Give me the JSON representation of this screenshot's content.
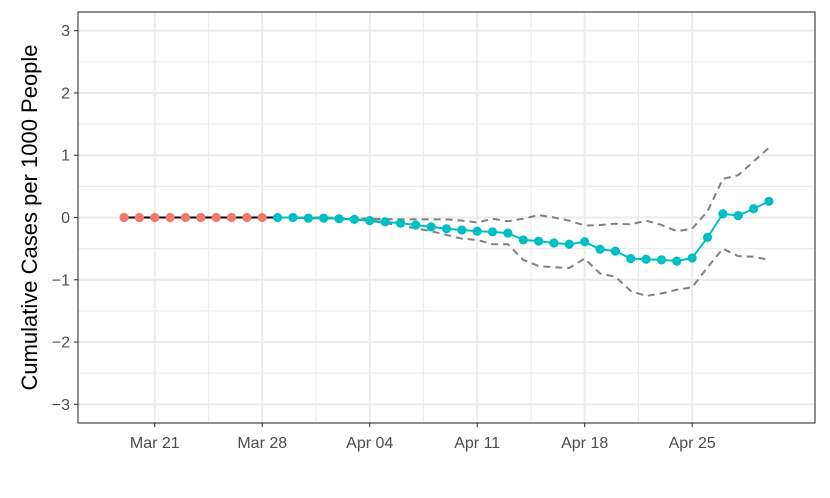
{
  "chart_data": {
    "type": "line",
    "ylabel": "Cumulative Cases per 1000 People",
    "xlabel": "",
    "x_axis": {
      "type": "date",
      "xlim": [
        "2020-03-16",
        "2020-05-03"
      ],
      "ticks": [
        "2020-03-21",
        "2020-03-28",
        "2020-04-04",
        "2020-04-11",
        "2020-04-18",
        "2020-04-25"
      ],
      "tick_labels": [
        "Mar 21",
        "Mar 28",
        "Apr 04",
        "Apr 11",
        "Apr 18",
        "Apr 25"
      ]
    },
    "y_axis": {
      "ylim": [
        -3.3,
        3.3
      ],
      "ticks": [
        3,
        2,
        1,
        0,
        -1,
        -2,
        -3
      ],
      "tick_labels": [
        "3",
        "2",
        "1",
        "0",
        "−1",
        "−2",
        "−3"
      ]
    },
    "grid": true,
    "legend": "none",
    "series": [
      {
        "role": "pre-period",
        "style": "points with black line",
        "color": "#F8766D",
        "points": [
          [
            "2020-03-19",
            0
          ],
          [
            "2020-03-20",
            0
          ],
          [
            "2020-03-21",
            0
          ],
          [
            "2020-03-22",
            0
          ],
          [
            "2020-03-23",
            0
          ],
          [
            "2020-03-24",
            0
          ],
          [
            "2020-03-25",
            0
          ],
          [
            "2020-03-26",
            0
          ],
          [
            "2020-03-27",
            0
          ],
          [
            "2020-03-28",
            0
          ]
        ]
      },
      {
        "role": "post-period",
        "style": "points with line",
        "color": "#00BFC4",
        "points": [
          [
            "2020-03-29",
            0
          ],
          [
            "2020-03-30",
            0
          ],
          [
            "2020-03-31",
            -0.01
          ],
          [
            "2020-04-01",
            -0.01
          ],
          [
            "2020-04-02",
            -0.02
          ],
          [
            "2020-04-03",
            -0.03
          ],
          [
            "2020-04-04",
            -0.05
          ],
          [
            "2020-04-05",
            -0.07
          ],
          [
            "2020-04-06",
            -0.09
          ],
          [
            "2020-04-07",
            -0.12
          ],
          [
            "2020-04-08",
            -0.15
          ],
          [
            "2020-04-09",
            -0.18
          ],
          [
            "2020-04-10",
            -0.2
          ],
          [
            "2020-04-11",
            -0.22
          ],
          [
            "2020-04-12",
            -0.23
          ],
          [
            "2020-04-13",
            -0.25
          ],
          [
            "2020-04-14",
            -0.36
          ],
          [
            "2020-04-15",
            -0.38
          ],
          [
            "2020-04-16",
            -0.41
          ],
          [
            "2020-04-17",
            -0.43
          ],
          [
            "2020-04-18",
            -0.39
          ],
          [
            "2020-04-19",
            -0.51
          ],
          [
            "2020-04-20",
            -0.54
          ],
          [
            "2020-04-21",
            -0.66
          ],
          [
            "2020-04-22",
            -0.67
          ],
          [
            "2020-04-23",
            -0.68
          ],
          [
            "2020-04-24",
            -0.7
          ],
          [
            "2020-04-25",
            -0.65
          ],
          [
            "2020-04-26",
            -0.32
          ],
          [
            "2020-04-27",
            0.06
          ],
          [
            "2020-04-28",
            0.03
          ],
          [
            "2020-04-29",
            0.14
          ],
          [
            "2020-04-30",
            0.26
          ]
        ]
      },
      {
        "role": "upper interval",
        "style": "dashed",
        "color": "#808080",
        "points": [
          [
            "2020-03-29",
            0
          ],
          [
            "2020-04-01",
            0
          ],
          [
            "2020-04-04",
            -0.02
          ],
          [
            "2020-04-06",
            -0.03
          ],
          [
            "2020-04-08",
            -0.03
          ],
          [
            "2020-04-09",
            -0.03
          ],
          [
            "2020-04-10",
            -0.05
          ],
          [
            "2020-04-11",
            -0.08
          ],
          [
            "2020-04-12",
            -0.02
          ],
          [
            "2020-04-13",
            -0.06
          ],
          [
            "2020-04-14",
            -0.02
          ],
          [
            "2020-04-15",
            0.04
          ],
          [
            "2020-04-16",
            0
          ],
          [
            "2020-04-17",
            -0.05
          ],
          [
            "2020-04-18",
            -0.13
          ],
          [
            "2020-04-19",
            -0.12
          ],
          [
            "2020-04-20",
            -0.1
          ],
          [
            "2020-04-21",
            -0.11
          ],
          [
            "2020-04-22",
            -0.05
          ],
          [
            "2020-04-23",
            -0.12
          ],
          [
            "2020-04-24",
            -0.22
          ],
          [
            "2020-04-25",
            -0.18
          ],
          [
            "2020-04-26",
            0.1
          ],
          [
            "2020-04-27",
            0.62
          ],
          [
            "2020-04-28",
            0.68
          ],
          [
            "2020-04-29",
            0.9
          ],
          [
            "2020-04-30",
            1.12
          ]
        ]
      },
      {
        "role": "lower interval",
        "style": "dashed",
        "color": "#808080",
        "points": [
          [
            "2020-03-29",
            0
          ],
          [
            "2020-04-01",
            -0.01
          ],
          [
            "2020-04-04",
            -0.05
          ],
          [
            "2020-04-06",
            -0.13
          ],
          [
            "2020-04-08",
            -0.22
          ],
          [
            "2020-04-09",
            -0.28
          ],
          [
            "2020-04-10",
            -0.34
          ],
          [
            "2020-04-11",
            -0.36
          ],
          [
            "2020-04-12",
            -0.43
          ],
          [
            "2020-04-13",
            -0.43
          ],
          [
            "2020-04-14",
            -0.68
          ],
          [
            "2020-04-15",
            -0.78
          ],
          [
            "2020-04-16",
            -0.8
          ],
          [
            "2020-04-17",
            -0.81
          ],
          [
            "2020-04-18",
            -0.66
          ],
          [
            "2020-04-19",
            -0.9
          ],
          [
            "2020-04-20",
            -0.95
          ],
          [
            "2020-04-21",
            -1.18
          ],
          [
            "2020-04-22",
            -1.26
          ],
          [
            "2020-04-23",
            -1.22
          ],
          [
            "2020-04-24",
            -1.16
          ],
          [
            "2020-04-25",
            -1.12
          ],
          [
            "2020-04-26",
            -0.8
          ],
          [
            "2020-04-27",
            -0.5
          ],
          [
            "2020-04-28",
            -0.62
          ],
          [
            "2020-04-29",
            -0.63
          ],
          [
            "2020-04-30",
            -0.68
          ]
        ]
      }
    ]
  }
}
